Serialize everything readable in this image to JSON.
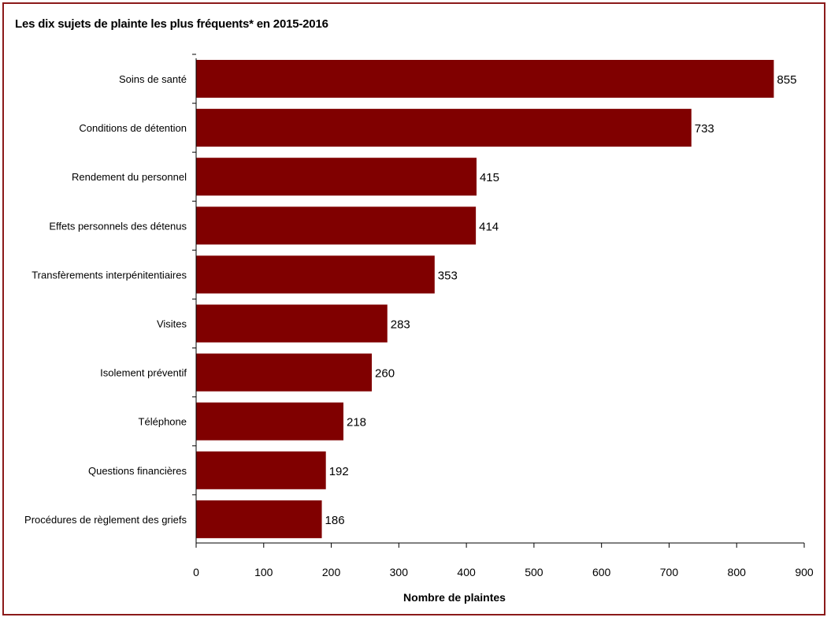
{
  "chart_data": {
    "type": "bar",
    "orientation": "horizontal",
    "title": "Les dix sujets de plainte les plus fréquents* en 2015-2016",
    "xlabel": "Nombre de plaintes",
    "ylabel": "",
    "xlim": [
      0,
      900
    ],
    "ticks": [
      "0",
      "100",
      "200",
      "300",
      "400",
      "500",
      "600",
      "700",
      "800",
      "900"
    ],
    "categories": [
      "Soins de santé",
      "Conditions de détention",
      "Rendement du personnel",
      "Effets personnels des détenus",
      "Transfèrements interpénitentiaires",
      "Visites",
      "Isolement préventif",
      "Téléphone",
      "Questions financières",
      "Procédures de règlement des griefs"
    ],
    "values": [
      855,
      733,
      415,
      414,
      353,
      283,
      260,
      218,
      192,
      186
    ],
    "bar_color": "#800000",
    "frame_color": "#8b1a1a",
    "grid": false,
    "legend": "none"
  }
}
